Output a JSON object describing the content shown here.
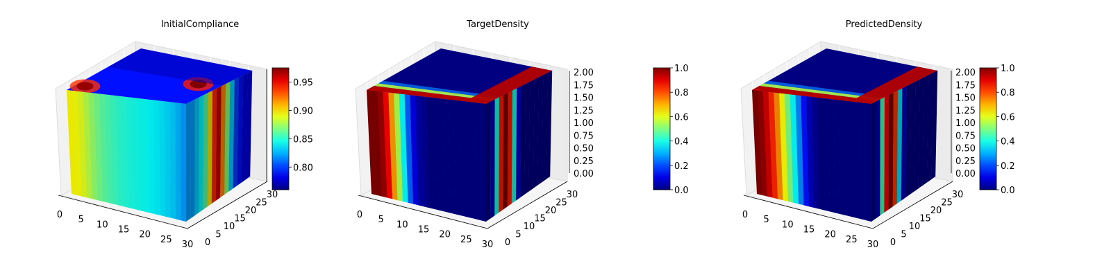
{
  "chart_data": [
    {
      "type": "voxel-3d",
      "title": "InitialCompliance",
      "x_ticks": [
        "0",
        "5",
        "10",
        "15",
        "20",
        "25",
        "30"
      ],
      "y_ticks": [
        "0",
        "5",
        "10",
        "15",
        "20",
        "25",
        "30"
      ],
      "z_ticks": [],
      "colorbar": {
        "colormap": "jet",
        "range": [
          0.76,
          0.975
        ],
        "ticks": [
          "0.80",
          "0.85",
          "0.90",
          "0.95"
        ]
      },
      "front_face_profile": [
        0.895,
        0.893,
        0.888,
        0.88,
        0.872,
        0.865,
        0.86,
        0.856,
        0.853,
        0.85,
        0.848,
        0.846,
        0.845,
        0.843,
        0.842,
        0.84,
        0.838,
        0.836,
        0.833,
        0.83,
        0.825,
        0.82
      ],
      "side_face_profile": [
        0.82,
        0.82,
        0.83,
        0.84,
        0.86,
        0.9,
        0.94,
        0.96,
        0.92,
        0.87,
        0.83,
        0.8,
        0.79,
        0.78,
        0.78
      ],
      "top_face_value": 0.79,
      "top_hotspots": [
        0.97,
        0.975
      ]
    },
    {
      "type": "voxel-3d",
      "title": "TargetDensity",
      "x_ticks": [
        "0",
        "5",
        "10",
        "15",
        "20",
        "25",
        "30"
      ],
      "y_ticks": [
        "0",
        "5",
        "10",
        "15",
        "20",
        "25",
        "30"
      ],
      "z_ticks": [
        "0.00",
        "0.25",
        "0.50",
        "0.75",
        "1.00",
        "1.25",
        "1.50",
        "1.75",
        "2.00"
      ],
      "colorbar": {
        "colormap": "jet",
        "range": [
          0.0,
          1.0
        ],
        "ticks": [
          "0.0",
          "0.2",
          "0.4",
          "0.6",
          "0.8",
          "1.0"
        ]
      },
      "front_face_profile": [
        1.0,
        1.0,
        0.97,
        0.88,
        0.72,
        0.55,
        0.38,
        0.22,
        0.1,
        0.04,
        0.02,
        0.0,
        0.0,
        0.0,
        0.0,
        0.0,
        0.0,
        0.0,
        0.0,
        0.0,
        0.0,
        0.0
      ],
      "side_face_profile": [
        0.0,
        0.05,
        0.4,
        0.85,
        1.0,
        0.85,
        0.4,
        0.08,
        0.0,
        0.0,
        0.0,
        0.0,
        0.0,
        0.0,
        0.0
      ],
      "top_face_value": 0.0
    },
    {
      "type": "voxel-3d",
      "title": "PredictedDensity",
      "x_ticks": [
        "0",
        "5",
        "10",
        "15",
        "20",
        "25",
        "30"
      ],
      "y_ticks": [
        "0",
        "5",
        "10",
        "15",
        "20",
        "25",
        "30"
      ],
      "z_ticks": [
        "0.00",
        "0.25",
        "0.50",
        "0.75",
        "1.00",
        "1.25",
        "1.50",
        "1.75",
        "2.00"
      ],
      "colorbar": {
        "colormap": "jet",
        "range": [
          0.0,
          1.0
        ],
        "ticks": [
          "0.0",
          "0.2",
          "0.4",
          "0.6",
          "0.8",
          "1.0"
        ]
      },
      "front_face_profile": [
        1.0,
        0.98,
        0.92,
        0.84,
        0.74,
        0.62,
        0.5,
        0.38,
        0.26,
        0.14,
        0.06,
        0.02,
        0.0,
        0.0,
        0.0,
        0.0,
        0.0,
        0.0,
        0.0,
        0.0,
        0.0,
        0.0
      ],
      "side_face_profile": [
        0.0,
        0.05,
        0.45,
        0.88,
        1.0,
        0.82,
        0.35,
        0.06,
        0.0,
        0.0,
        0.0,
        0.0,
        0.0,
        0.0,
        0.0
      ],
      "top_face_value": 0.0
    }
  ]
}
